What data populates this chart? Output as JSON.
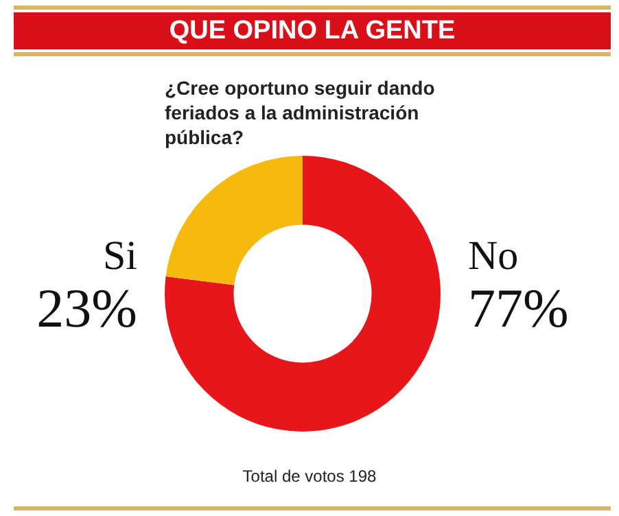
{
  "chart_data": {
    "type": "donut",
    "title": "QUE OPINO LA GENTE",
    "subtitle": "¿Cree oportuno seguir dando feriados a la administración pública?",
    "categories": [
      "No",
      "Si"
    ],
    "values": [
      77,
      23
    ],
    "value_labels": [
      "77%",
      "23%"
    ],
    "colors": [
      "#e8151b",
      "#f6b90d"
    ],
    "legend": false,
    "annotations": [
      "Total de votos 198"
    ]
  }
}
